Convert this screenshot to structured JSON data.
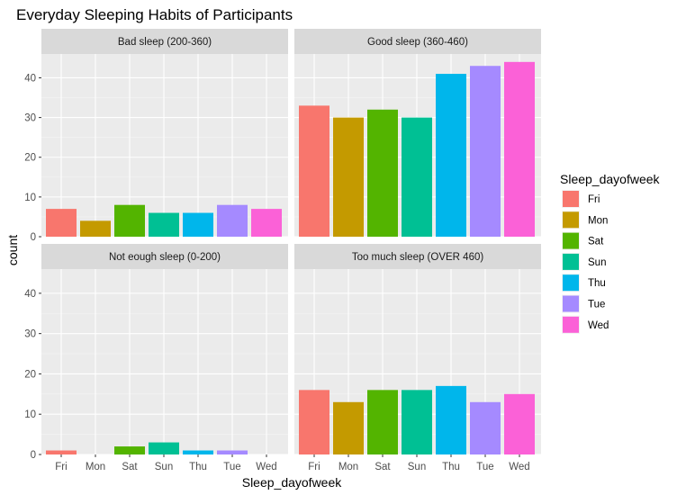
{
  "chart_data": {
    "type": "bar",
    "title": "Everyday Sleeping Habits of Participants",
    "xlabel": "Sleep_dayofweek",
    "ylabel": "count",
    "ylim": [
      0,
      46
    ],
    "yticks": [
      0,
      10,
      20,
      30,
      40
    ],
    "grid": true,
    "legend_position": "right",
    "legend_title": "Sleep_dayofweek",
    "categories": [
      "Fri",
      "Mon",
      "Sat",
      "Sun",
      "Thu",
      "Tue",
      "Wed"
    ],
    "colors": {
      "Fri": "#F8766D",
      "Mon": "#C49A00",
      "Sat": "#53B400",
      "Sun": "#00C094",
      "Thu": "#00B6EB",
      "Tue": "#A58AFF",
      "Wed": "#FB61D7"
    },
    "panels": [
      {
        "strip": "Bad sleep (200-360)",
        "values": [
          7,
          4,
          8,
          6,
          6,
          8,
          7
        ]
      },
      {
        "strip": "Good sleep (360-460)",
        "values": [
          33,
          30,
          32,
          30,
          41,
          43,
          44
        ]
      },
      {
        "strip": "Not eough sleep (0-200)",
        "values": [
          1,
          0,
          2,
          3,
          1,
          1,
          0
        ]
      },
      {
        "strip": "Too much sleep (OVER 460)",
        "values": [
          16,
          13,
          16,
          16,
          17,
          13,
          15
        ]
      }
    ]
  }
}
